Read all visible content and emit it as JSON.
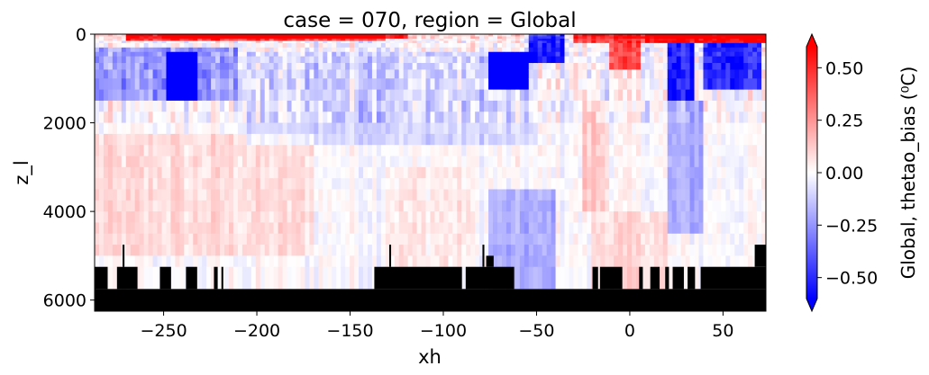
{
  "chart_data": {
    "type": "heatmap",
    "title": "case = 070, region = Global",
    "xlabel": "xh",
    "ylabel": "z_l",
    "colorbar_label": "Global, thetao_bias (⁰C)",
    "xlim": [
      -287,
      73
    ],
    "ylim": [
      6250,
      0
    ],
    "x_ticks": [
      -250,
      -200,
      -150,
      -100,
      -50,
      0,
      50
    ],
    "x_tick_labels": [
      "−250",
      "−200",
      "−150",
      "−100",
      "−50",
      "0",
      "50"
    ],
    "y_ticks": [
      0,
      2000,
      4000,
      6000
    ],
    "y_tick_labels": [
      "0",
      "2000",
      "4000",
      "6000"
    ],
    "colorbar": {
      "vmin": -0.6,
      "vmax": 0.6,
      "cmap": "bwr",
      "extend": "both",
      "ticks": [
        -0.5,
        -0.25,
        0,
        0.25,
        0.5
      ],
      "tick_labels": [
        "−0.50",
        "−0.25",
        "0.00",
        "0.25",
        "0.50"
      ]
    },
    "colors": {
      "min": "#0000ff",
      "mid": "#ffffff",
      "max": "#ff0000",
      "land": "#000000"
    },
    "features": [
      {
        "x": [
          -270,
          -130
        ],
        "z": [
          0,
          150
        ],
        "value": 0.45
      },
      {
        "x": [
          -250,
          -120
        ],
        "z": [
          0,
          100
        ],
        "value": 0.5
      },
      {
        "x": [
          -290,
          -210
        ],
        "z": [
          300,
          1500
        ],
        "value": -0.25
      },
      {
        "x": [
          -248,
          -232
        ],
        "z": [
          400,
          1600
        ],
        "value": -0.5
      },
      {
        "x": [
          -205,
          -50
        ],
        "z": [
          400,
          2500
        ],
        "value": -0.1
      },
      {
        "x": [
          -75,
          -55
        ],
        "z": [
          400,
          1200
        ],
        "value": -0.65
      },
      {
        "x": [
          -55,
          -35
        ],
        "z": [
          0,
          600
        ],
        "value": -0.55
      },
      {
        "x": [
          -30,
          10
        ],
        "z": [
          0,
          200
        ],
        "value": 0.45
      },
      {
        "x": [
          -12,
          5
        ],
        "z": [
          200,
          800
        ],
        "value": 0.4
      },
      {
        "x": [
          8,
          73
        ],
        "z": [
          0,
          200
        ],
        "value": 0.6
      },
      {
        "x": [
          20,
          35
        ],
        "z": [
          200,
          1500
        ],
        "value": -0.55
      },
      {
        "x": [
          40,
          70
        ],
        "z": [
          200,
          1200
        ],
        "value": -0.5
      },
      {
        "x": [
          20,
          40
        ],
        "z": [
          1500,
          4500
        ],
        "value": -0.2
      },
      {
        "x": [
          -25,
          -10
        ],
        "z": [
          1500,
          4000
        ],
        "value": 0.12
      },
      {
        "x": [
          -290,
          -170
        ],
        "z": [
          2200,
          5000
        ],
        "value": 0.08
      },
      {
        "x": [
          -130,
          -85
        ],
        "z": [
          3000,
          5200
        ],
        "value": 0.05
      },
      {
        "x": [
          -75,
          -40
        ],
        "z": [
          3500,
          5800
        ],
        "value": -0.2
      },
      {
        "x": [
          -20,
          20
        ],
        "z": [
          4000,
          5800
        ],
        "value": 0.08
      }
    ],
    "land": [
      {
        "x": [
          -287,
          73
        ],
        "z": [
          5750,
          6250
        ]
      },
      {
        "x": [
          -287,
          -280
        ],
        "z": [
          5250,
          5750
        ]
      },
      {
        "x": [
          -275,
          -264
        ],
        "z": [
          5250,
          5750
        ]
      },
      {
        "x": [
          -272,
          -271
        ],
        "z": [
          4750,
          5250
        ]
      },
      {
        "x": [
          -252,
          -246
        ],
        "z": [
          5250,
          5750
        ]
      },
      {
        "x": [
          -238,
          -232
        ],
        "z": [
          5250,
          5750
        ]
      },
      {
        "x": [
          -223,
          -221
        ],
        "z": [
          5250,
          5750
        ]
      },
      {
        "x": [
          -219,
          -218
        ],
        "z": [
          5250,
          5750
        ]
      },
      {
        "x": [
          -137,
          -90
        ],
        "z": [
          5250,
          5750
        ]
      },
      {
        "x": [
          -129,
          -128
        ],
        "z": [
          4750,
          5250
        ]
      },
      {
        "x": [
          -88,
          -62
        ],
        "z": [
          5250,
          5750
        ]
      },
      {
        "x": [
          -79,
          -78
        ],
        "z": [
          4750,
          5250
        ]
      },
      {
        "x": [
          -77,
          -73
        ],
        "z": [
          5000,
          5250
        ]
      },
      {
        "x": [
          -20,
          -17
        ],
        "z": [
          5250,
          5750
        ]
      },
      {
        "x": [
          -16,
          -4
        ],
        "z": [
          5250,
          5750
        ]
      },
      {
        "x": [
          5,
          7
        ],
        "z": [
          5250,
          5750
        ]
      },
      {
        "x": [
          11,
          16
        ],
        "z": [
          5250,
          5750
        ]
      },
      {
        "x": [
          19,
          21
        ],
        "z": [
          5250,
          5750
        ]
      },
      {
        "x": [
          23,
          29
        ],
        "z": [
          5250,
          5750
        ]
      },
      {
        "x": [
          31,
          35
        ],
        "z": [
          5250,
          5750
        ]
      },
      {
        "x": [
          38,
          73
        ],
        "z": [
          5250,
          5750
        ]
      },
      {
        "x": [
          67,
          73
        ],
        "z": [
          4750,
          5250
        ]
      }
    ]
  }
}
